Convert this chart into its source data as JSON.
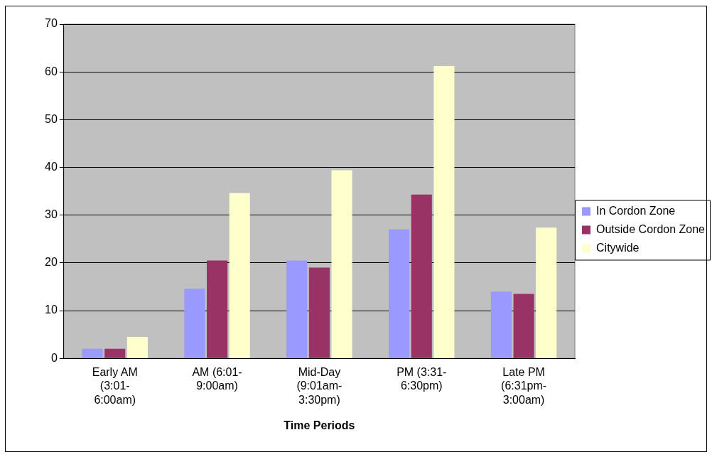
{
  "chart_data": {
    "type": "bar",
    "xlabel": "Time Periods",
    "categories": [
      "Early AM (3:01-6:00am)",
      "AM (6:01-9:00am)",
      "Mid-Day (9:01am-3:30pm)",
      "PM (3:31-6:30pm)",
      "Late PM (6:31pm-3:00am)"
    ],
    "series": [
      {
        "name": "In Cordon Zone",
        "color": "#9999ff",
        "values": [
          2,
          14.6,
          20.5,
          27,
          14
        ]
      },
      {
        "name": "Outside Cordon Zone",
        "color": "#993366",
        "values": [
          2,
          20.5,
          19,
          34.3,
          13.5
        ]
      },
      {
        "name": "Citywide",
        "color": "#ffffcc",
        "values": [
          4.5,
          34.6,
          39.4,
          61.2,
          27.4
        ]
      }
    ],
    "ylim": [
      0,
      70
    ],
    "yticks": [
      0,
      10,
      20,
      30,
      40,
      50,
      60,
      70
    ],
    "grid": "y",
    "legend": "right"
  }
}
